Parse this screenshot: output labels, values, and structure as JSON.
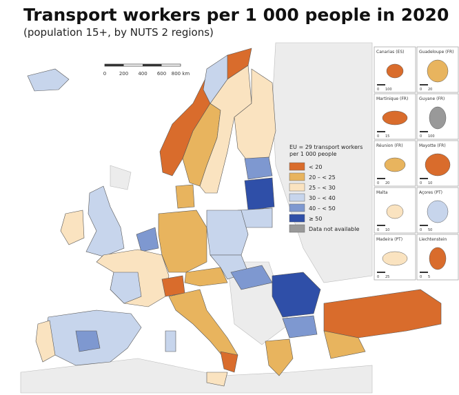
{
  "header": {
    "title": "Transport workers per 1 000 people in 2020",
    "subtitle": "(population 15+, by NUTS 2 regions)"
  },
  "scale_bar": {
    "labels": [
      "0",
      "200",
      "400",
      "600",
      "800 km"
    ]
  },
  "legend": {
    "title": [
      "EU = 29 transport workers",
      "per 1 000 people"
    ],
    "items": [
      {
        "label": "< 20",
        "color": "#d96c2c"
      },
      {
        "label": "20 – < 25",
        "color": "#e8b45e"
      },
      {
        "label": "25 – < 30",
        "color": "#fae3c0"
      },
      {
        "label": "30 – < 40",
        "color": "#c7d5ec"
      },
      {
        "label": "40 – < 50",
        "color": "#7e98d0"
      },
      {
        "label": "≥ 50",
        "color": "#2f4fa8"
      },
      {
        "label": "Data not available",
        "color": "#999999"
      }
    ]
  },
  "insets": [
    {
      "label": "Canarias (ES)",
      "scale": [
        "0",
        "100"
      ]
    },
    {
      "label": "Guadeloupe (FR)",
      "scale": [
        "0",
        "20"
      ]
    },
    {
      "label": "Martinique (FR)",
      "scale": [
        "0",
        "15"
      ]
    },
    {
      "label": "Guyane (FR)",
      "scale": [
        "0",
        "100"
      ]
    },
    {
      "label": "Réunion (FR)",
      "scale": [
        "0",
        "20"
      ]
    },
    {
      "label": "Mayotte (FR)",
      "scale": [
        "0",
        "10"
      ]
    },
    {
      "label": "Malta",
      "scale": [
        "0",
        "10"
      ]
    },
    {
      "label": "Açores (PT)",
      "scale": [
        "0",
        "50"
      ]
    },
    {
      "label": "Madeira (PT)",
      "scale": [
        "0",
        "25"
      ]
    },
    {
      "label": "Liechtenstein",
      "scale": [
        "0",
        "5"
      ]
    }
  ]
}
